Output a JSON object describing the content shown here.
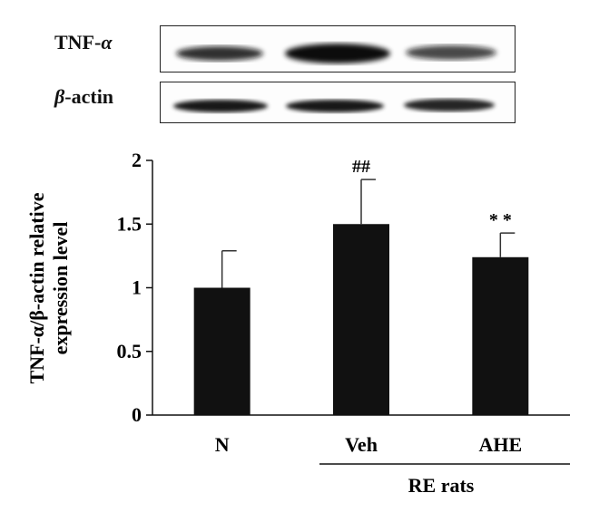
{
  "blot": {
    "rows": [
      {
        "label_prefix": "TNF-",
        "label_greek": "α",
        "label_suffix": ""
      },
      {
        "label_prefix": "",
        "label_greek": "β",
        "label_suffix": "-actin"
      }
    ],
    "lanes": [
      "N",
      "Veh",
      "AHE"
    ],
    "band_intensity": {
      "tnf": [
        0.75,
        0.95,
        0.7
      ],
      "actin": [
        0.9,
        0.9,
        0.85
      ]
    }
  },
  "chart_data": {
    "type": "bar",
    "categories": [
      "N",
      "Veh",
      "AHE"
    ],
    "values": [
      1.0,
      1.5,
      1.24
    ],
    "errors": [
      0.29,
      0.35,
      0.19
    ],
    "annotations": [
      "",
      "##",
      "* *"
    ],
    "ylabel_line1": "TNF-α/β-actin relative",
    "ylabel_line2": "expression level",
    "yticks": [
      "0",
      "0.5",
      "1",
      "1.5",
      "2"
    ],
    "ylim": [
      0,
      2
    ],
    "group_label": "RE rats",
    "bar_color": "#111111"
  }
}
